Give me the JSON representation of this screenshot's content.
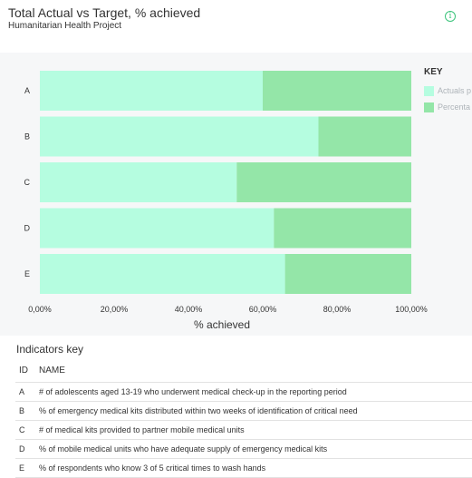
{
  "header": {
    "title": "Total Actual vs Target, % achieved",
    "subtitle": "Humanitarian Health Project",
    "info_icon": "info-circle-icon",
    "info_glyph": "i"
  },
  "legend": {
    "title": "KEY",
    "items": [
      {
        "label": "Actuals p",
        "color": "#b5fde0"
      },
      {
        "label": "Percenta",
        "color": "#94e6a8"
      }
    ]
  },
  "chart_data": {
    "type": "bar",
    "orientation": "horizontal",
    "stacked": true,
    "categories": [
      "A",
      "B",
      "C",
      "D",
      "E"
    ],
    "series": [
      {
        "name": "Actuals p",
        "color": "#b5fde0",
        "values": [
          60,
          75,
          53,
          63,
          66
        ]
      },
      {
        "name": "Percenta",
        "color": "#94e6a8",
        "values": [
          40,
          25,
          47,
          37,
          34
        ]
      }
    ],
    "xlabel": "% achieved",
    "xlim": [
      0,
      100
    ],
    "x_ticks": [
      "0,00%",
      "20,00%",
      "40,00%",
      "60,00%",
      "80,00%",
      "100,00%"
    ],
    "legend": "right"
  },
  "indicators": {
    "heading": "Indicators key",
    "columns": [
      "ID",
      "NAME"
    ],
    "rows": [
      {
        "id": "A",
        "name": "# of adolescents aged 13-19 who underwent medical check-up in the reporting period"
      },
      {
        "id": "B",
        "name": "% of emergency medical kits distributed within two weeks of identification of critical need"
      },
      {
        "id": "C",
        "name": "# of medical kits provided to partner mobile medical units"
      },
      {
        "id": "D",
        "name": "% of mobile medical units who have adequate supply of emergency medical kits"
      },
      {
        "id": "E",
        "name": "% of respondents who know 3 of 5 critical times to wash hands"
      }
    ]
  }
}
